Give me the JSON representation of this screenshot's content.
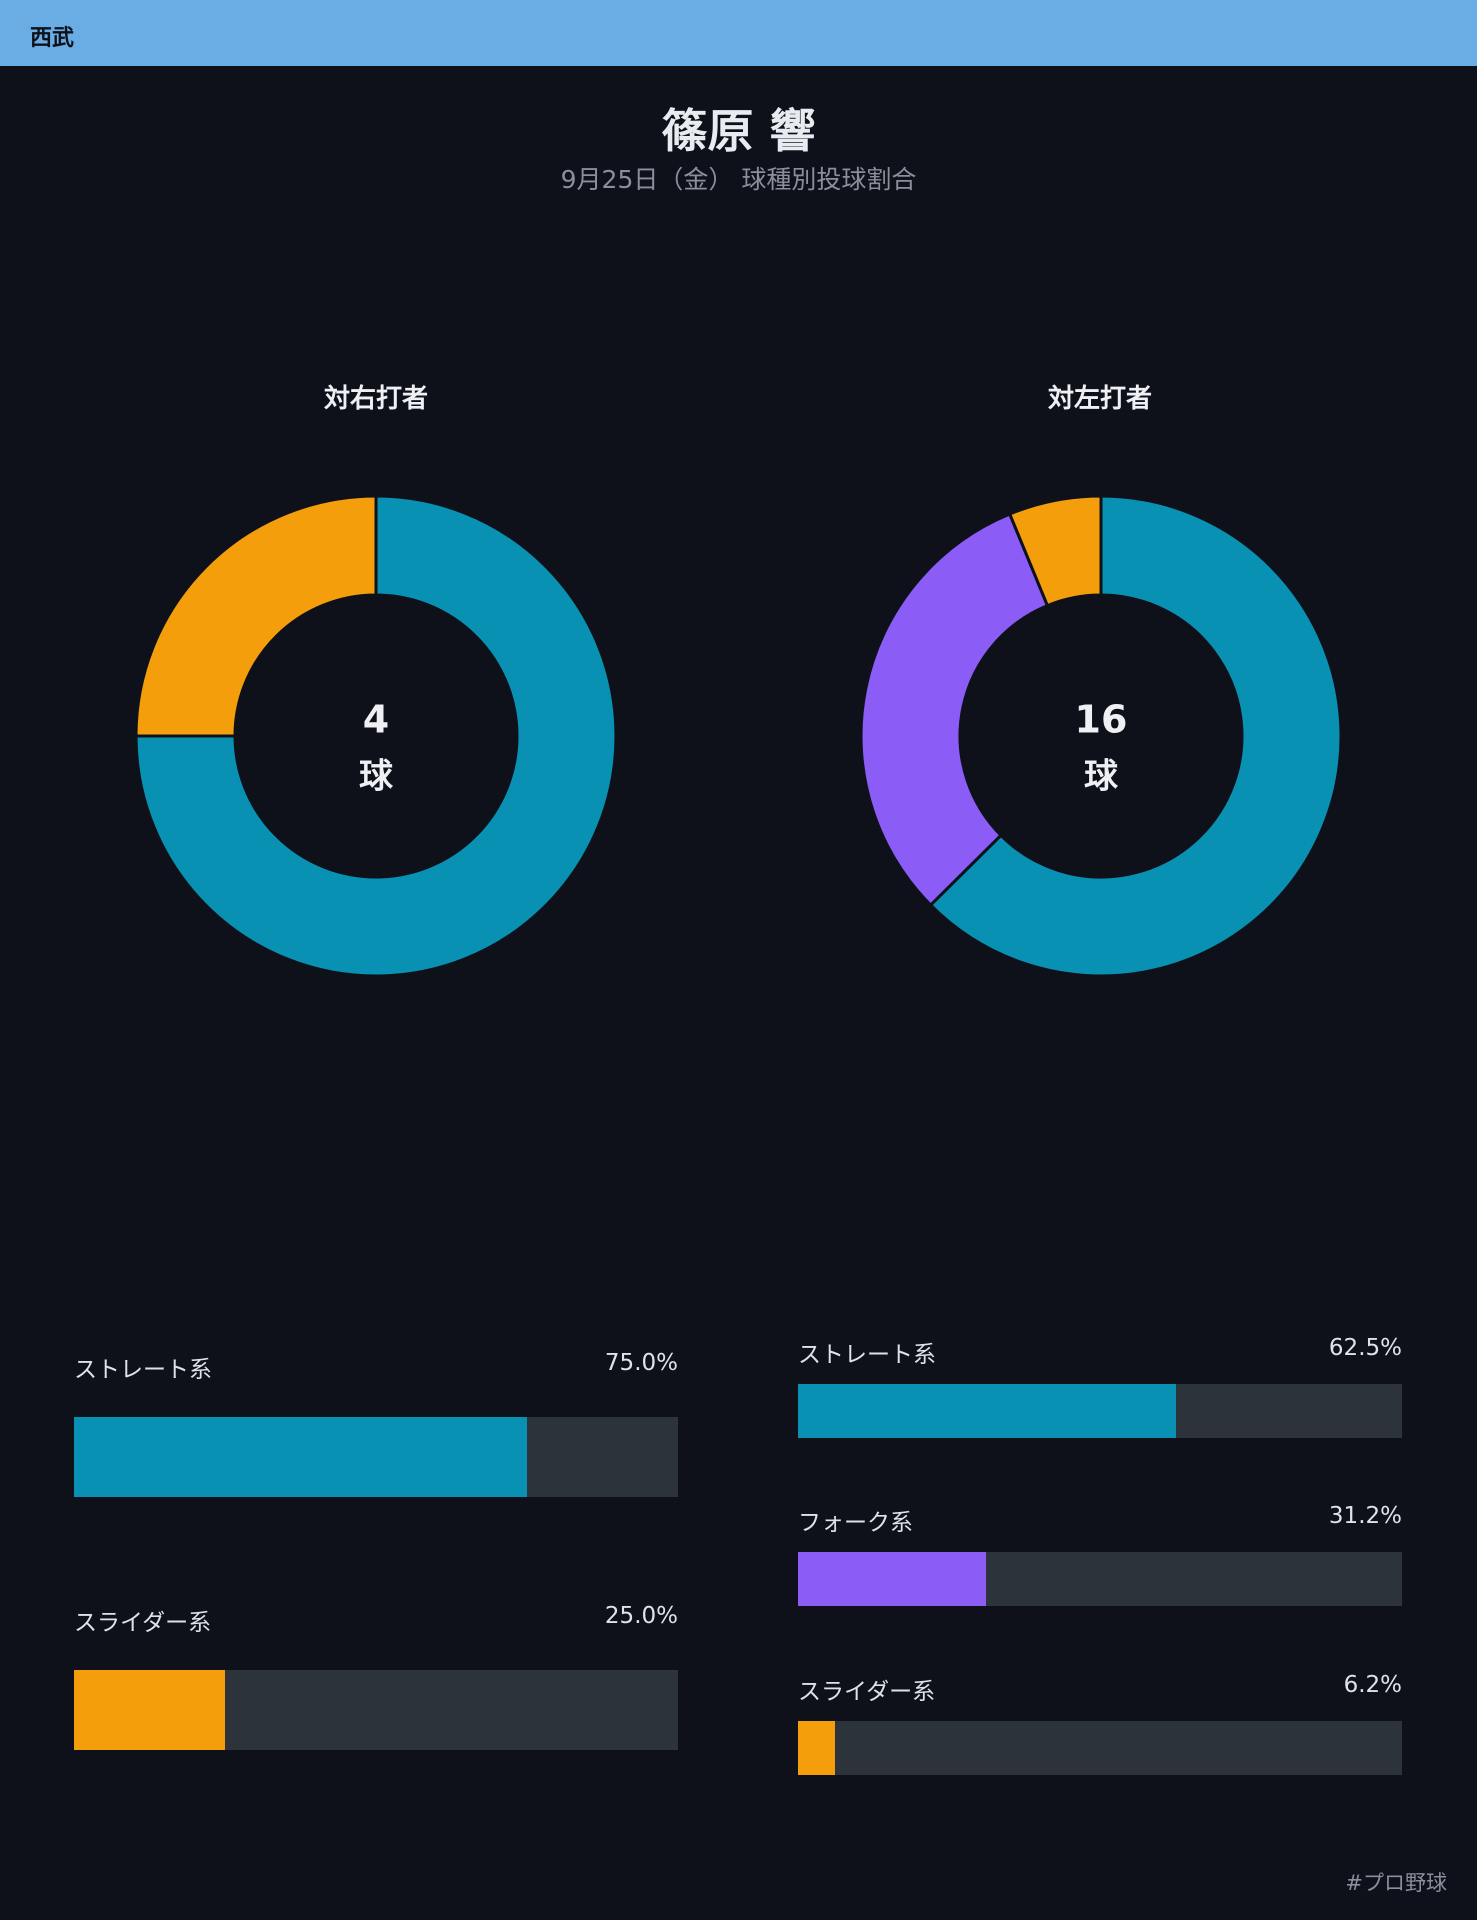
{
  "header": {
    "team": "西武",
    "title": "篠原 響",
    "subtitle": "9月25日（金） 球種別投球割合"
  },
  "colors": {
    "background": "#0e111a",
    "header_bar": "#6aade4",
    "straight": "#0891b2",
    "slider": "#f59e0b",
    "fork": "#8b5cf6",
    "track": "#2d333b"
  },
  "chart_data": [
    {
      "type": "pie",
      "title": "対右打者",
      "center_count": "4",
      "center_unit": "球",
      "total": 4,
      "categories": [
        "ストレート系",
        "スライダー系"
      ],
      "values": [
        75.0,
        25.0
      ],
      "value_labels": [
        "75.0%",
        "25.0%"
      ],
      "colors": [
        "#0891b2",
        "#f59e0b"
      ]
    },
    {
      "type": "pie",
      "title": "対左打者",
      "center_count": "16",
      "center_unit": "球",
      "total": 16,
      "categories": [
        "ストレート系",
        "フォーク系",
        "スライダー系"
      ],
      "values": [
        62.5,
        31.2,
        6.2
      ],
      "value_labels": [
        "62.5%",
        "31.2%",
        "6.2%"
      ],
      "colors": [
        "#0891b2",
        "#8b5cf6",
        "#f59e0b"
      ]
    }
  ],
  "footer": {
    "hashtag": "#プロ野球"
  }
}
